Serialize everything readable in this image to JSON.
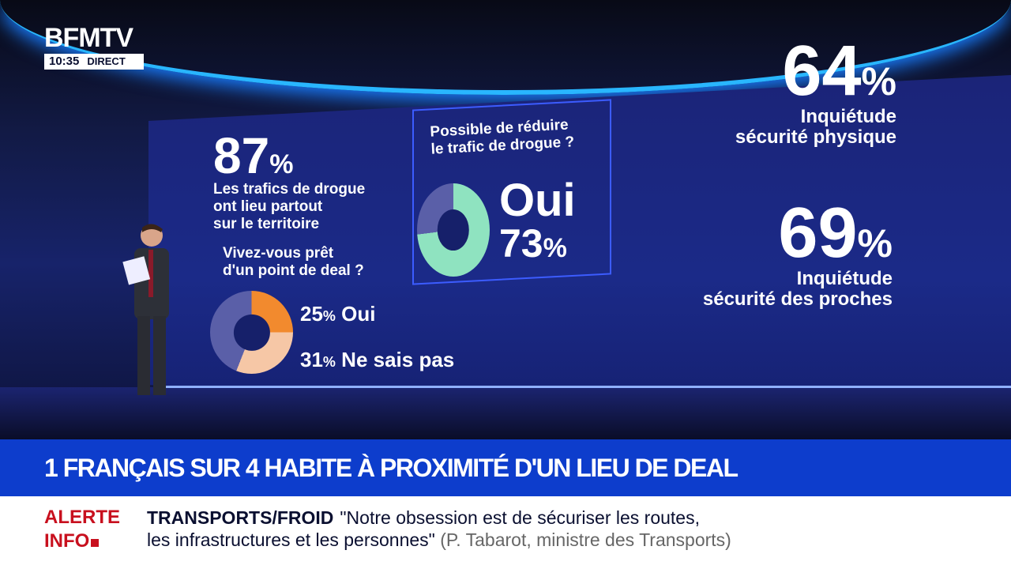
{
  "logo": {
    "brand": "BFMTV",
    "time": "10:35",
    "live": "DIRECT"
  },
  "screen": {
    "stat1": {
      "value": "87",
      "unit": "%",
      "text": [
        "Les trafics de drogue",
        "ont lieu partout",
        "sur le territoire"
      ]
    },
    "question1": {
      "text": [
        "Vivez-vous prêt",
        "d'un point de deal ?"
      ],
      "donut": [
        {
          "label": "Oui",
          "value": "25",
          "unit": "%",
          "color": "#f28a2e"
        },
        {
          "label": "Ne sais pas",
          "value": "31",
          "unit": "%",
          "color": "#f6c7a6"
        },
        {
          "label": "",
          "value": 44,
          "color": "#5a5fa8"
        }
      ]
    },
    "question2": {
      "text": [
        "Possible de réduire",
        "le trafic de drogue ?"
      ],
      "answer": "Oui",
      "value": "73",
      "unit": "%",
      "colors": {
        "yes": "#8fe3c0",
        "other": "#5a5fa8"
      }
    },
    "stat2": {
      "value": "64",
      "unit": "%",
      "text": [
        "Inquiétude",
        "sécurité physique"
      ]
    },
    "stat3": {
      "value": "69",
      "unit": "%",
      "text": [
        "Inquiétude",
        "sécurité des proches"
      ]
    }
  },
  "headline": "1 FRANÇAIS SUR 4 HABITE À PROXIMITÉ D'UN LIEU DE DEAL",
  "ticker": {
    "alert": [
      "ALERTE",
      "INFO"
    ],
    "category": "TRANSPORTS/FROID",
    "quote1": "\"Notre obsession est de sécuriser les routes,",
    "quote2": "les infrastructures et les personnes\"",
    "source": "(P. Tabarot, ministre des Transports)"
  },
  "colors": {
    "headline_bg": "#0d3dcc",
    "alert": "#c8101e"
  }
}
